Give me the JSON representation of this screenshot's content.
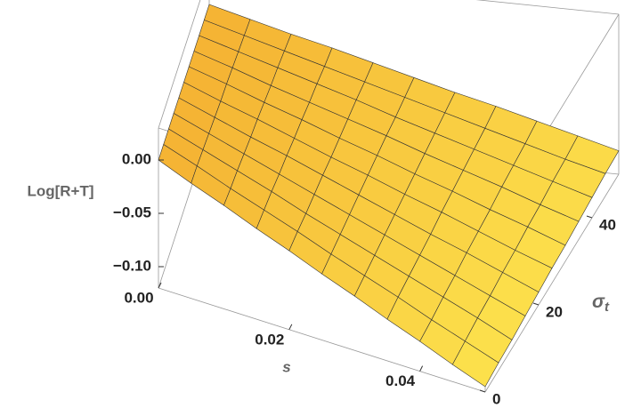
{
  "chart_data": {
    "type": "surface",
    "zlabel": "Log[R+T]",
    "xlabel": "s",
    "ylabel": [
      "σ",
      "t"
    ],
    "x": [
      0,
      0.005,
      0.01,
      0.015,
      0.02,
      0.025,
      0.03,
      0.035,
      0.04,
      0.045,
      0.05
    ],
    "y": [
      0,
      5,
      10,
      15,
      20,
      25,
      30,
      35,
      40,
      45,
      50
    ],
    "z": [
      [
        0,
        -0.012,
        -0.023,
        -0.035,
        -0.046,
        -0.058,
        -0.069,
        -0.081,
        -0.092,
        -0.104,
        -0.115
      ],
      [
        0,
        -0.011,
        -0.023,
        -0.034,
        -0.045,
        -0.057,
        -0.068,
        -0.079,
        -0.091,
        -0.102,
        -0.113
      ],
      [
        0,
        -0.011,
        -0.022,
        -0.033,
        -0.045,
        -0.056,
        -0.067,
        -0.078,
        -0.089,
        -0.1,
        -0.112
      ],
      [
        0,
        -0.011,
        -0.022,
        -0.033,
        -0.044,
        -0.055,
        -0.066,
        -0.077,
        -0.088,
        -0.099,
        -0.11
      ],
      [
        0,
        -0.011,
        -0.022,
        -0.032,
        -0.043,
        -0.054,
        -0.065,
        -0.076,
        -0.086,
        -0.097,
        -0.108
      ],
      [
        0,
        -0.011,
        -0.021,
        -0.032,
        -0.043,
        -0.053,
        -0.064,
        -0.074,
        -0.085,
        -0.096,
        -0.106
      ],
      [
        0,
        -0.01,
        -0.021,
        -0.031,
        -0.042,
        -0.052,
        -0.063,
        -0.073,
        -0.084,
        -0.094,
        -0.105
      ],
      [
        0,
        -0.01,
        -0.021,
        -0.031,
        -0.041,
        -0.051,
        -0.062,
        -0.072,
        -0.082,
        -0.093,
        -0.103
      ],
      [
        0,
        -0.01,
        -0.02,
        -0.03,
        -0.04,
        -0.051,
        -0.061,
        -0.071,
        -0.081,
        -0.091,
        -0.101
      ],
      [
        0,
        -0.01,
        -0.02,
        -0.03,
        -0.04,
        -0.05,
        -0.06,
        -0.07,
        -0.08,
        -0.09,
        -0.099
      ],
      [
        0,
        -0.01,
        -0.02,
        -0.029,
        -0.039,
        -0.049,
        -0.059,
        -0.068,
        -0.078,
        -0.088,
        -0.098
      ]
    ],
    "xlim": [
      0,
      0.05
    ],
    "ylim": [
      0,
      50
    ],
    "zlim": [
      -0.12,
      0.03
    ],
    "xticks": [
      {
        "value": 0,
        "label": "0.00"
      },
      0.02,
      0.04
    ],
    "yticks": [
      0,
      20,
      40
    ],
    "zticks": [
      {
        "value": 0,
        "label": "0.00"
      },
      {
        "value": -0.05,
        "label": "−0.05"
      },
      {
        "value": -0.1,
        "label": "−0.10"
      }
    ],
    "colormap": [
      "#f2a52c",
      "#fde54e"
    ]
  }
}
